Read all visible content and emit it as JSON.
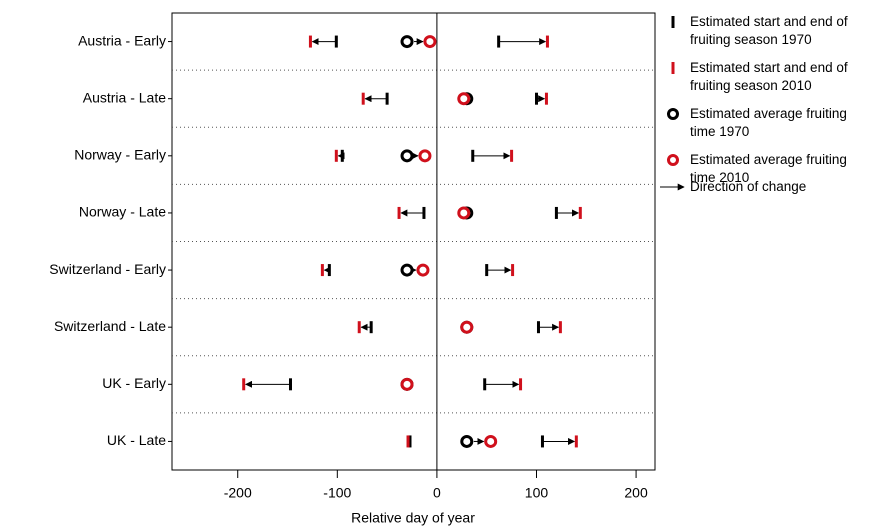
{
  "chart_data": {
    "type": "dot-change",
    "xlabel": "Relative day of year",
    "categories": [
      "Austria - Early",
      "Austria - Late",
      "Norway - Early",
      "Norway - Late",
      "Switzerland - Early",
      "Switzerland - Late",
      "UK - Early",
      "UK - Late"
    ],
    "xlim": [
      -266,
      219
    ],
    "xticks": [
      -200,
      -100,
      0,
      100,
      200
    ],
    "series": [
      {
        "name": "Estimated start and end of fruiting season 1970",
        "color": "#000000",
        "marker": "tick",
        "start": [
          -101,
          -50,
          -95,
          -13,
          -108,
          -66,
          -147,
          -27
        ],
        "end": [
          62,
          100,
          36,
          120,
          50,
          102,
          48,
          106
        ]
      },
      {
        "name": "Estimated start and end of fruiting season 2010",
        "color": "#d0101c",
        "marker": "tick",
        "start": [
          -127,
          -74,
          -101,
          -38,
          -115,
          -78,
          -194,
          -29
        ],
        "end": [
          111,
          110,
          75,
          144,
          76,
          124,
          84,
          140
        ]
      },
      {
        "name": "Estimated average fruiting time 1970",
        "color": "#000000",
        "marker": "circle",
        "values": [
          -30,
          30,
          -30,
          30,
          -30,
          30,
          -30,
          30
        ]
      },
      {
        "name": "Estimated average fruiting time 2010",
        "color": "#d0101c",
        "marker": "circle",
        "values": [
          -7,
          27,
          -12,
          27,
          -14,
          30,
          -30,
          54
        ]
      }
    ],
    "arrow_legend": "Direction of change"
  }
}
